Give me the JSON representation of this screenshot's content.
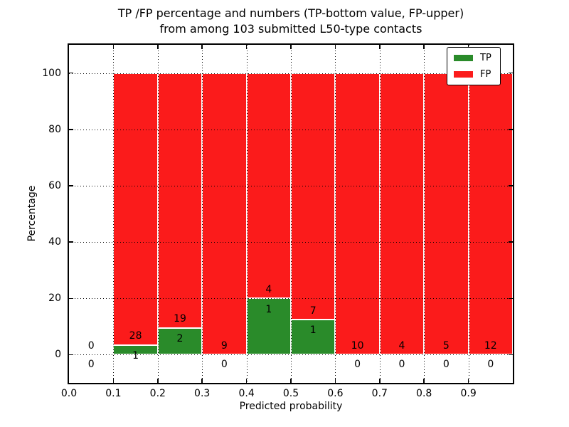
{
  "figure": {
    "title_line1": "TP /FP percentage and numbers (TP-bottom value, FP-upper)",
    "title_line2": "from among 103 submitted L50-type contacts",
    "xlabel": "Predicted probability",
    "ylabel": "Percentage"
  },
  "legend": {
    "position": "upper right",
    "items": [
      {
        "label": "TP",
        "color": "#2a8b2a"
      },
      {
        "label": "FP",
        "color": "#fb1b1b"
      }
    ]
  },
  "chart_data": {
    "type": "bar",
    "stacked": true,
    "title": "TP /FP percentage and numbers (TP-bottom value, FP-upper) from among 103 submitted L50-type contacts",
    "xlabel": "Predicted probability",
    "ylabel": "Percentage",
    "xlim": [
      0.0,
      1.0
    ],
    "ylim": [
      -10,
      110
    ],
    "xticks": [
      0.0,
      0.1,
      0.2,
      0.3,
      0.4,
      0.5,
      0.6,
      0.7,
      0.8,
      0.9
    ],
    "yticks": [
      0,
      20,
      40,
      60,
      80,
      100
    ],
    "grid": true,
    "grid_style": "dotted",
    "legend_position": "upper right",
    "bin_width": 0.1,
    "bin_starts": [
      0.0,
      0.1,
      0.2,
      0.3,
      0.4,
      0.5,
      0.6,
      0.7,
      0.8,
      0.9
    ],
    "series": [
      {
        "name": "TP",
        "color": "#2a8b2a",
        "counts": [
          0,
          1,
          2,
          0,
          1,
          1,
          0,
          0,
          0,
          0
        ]
      },
      {
        "name": "FP",
        "color": "#fb1b1b",
        "counts": [
          0,
          28,
          19,
          9,
          4,
          7,
          10,
          4,
          5,
          12
        ]
      }
    ],
    "tp_percent": [
      0,
      3.45,
      9.52,
      0,
      20.0,
      12.5,
      0,
      0,
      0,
      0
    ],
    "fp_percent": [
      0,
      96.55,
      90.48,
      100,
      80.0,
      87.5,
      100,
      100,
      100,
      100
    ]
  }
}
